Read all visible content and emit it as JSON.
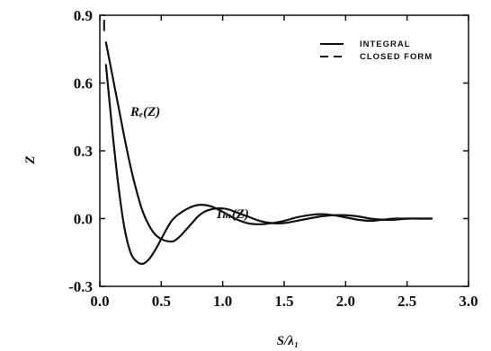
{
  "chart_data": {
    "type": "line",
    "title": "",
    "xlabel": "S/λ₁",
    "ylabel": "Z",
    "xlim": [
      0.0,
      3.0
    ],
    "ylim": [
      -0.3,
      0.9
    ],
    "xticks": [
      0.0,
      0.5,
      1.0,
      1.5,
      2.0,
      2.5,
      3.0
    ],
    "xtick_labels": [
      "0.0",
      "0.5",
      "1.0",
      "1.5",
      "2.0",
      "2.5",
      "3.0"
    ],
    "yticks": [
      -0.3,
      0.0,
      0.3,
      0.6,
      0.9
    ],
    "ytick_labels": [
      "-0.3",
      "0.0",
      "0.3",
      "0.6",
      "0.9"
    ],
    "grid": false,
    "legend_position": "top-right",
    "legend": [
      {
        "label": "INTEGRAL",
        "style": "solid"
      },
      {
        "label": "CLOSED FORM",
        "style": "dashed"
      }
    ],
    "annotations": [
      {
        "text": "Rₑ(Z)",
        "series": "Re(Z)"
      },
      {
        "text": "Iₘ(Z)",
        "series": "Im(Z)"
      }
    ],
    "series": [
      {
        "name": "Rₑ(Z)",
        "x": [
          0.05,
          0.1,
          0.15,
          0.2,
          0.25,
          0.3,
          0.35,
          0.4,
          0.45,
          0.5,
          0.55,
          0.6,
          0.65,
          0.7,
          0.75,
          0.8,
          0.85,
          0.9,
          0.95,
          1.0,
          1.05,
          1.1,
          1.15,
          1.2,
          1.3,
          1.4,
          1.5,
          1.6,
          1.7,
          1.8,
          1.9,
          2.0,
          2.1,
          2.2,
          2.3,
          2.4,
          2.5,
          2.6,
          2.7
        ],
        "values": [
          0.78,
          0.64,
          0.5,
          0.36,
          0.23,
          0.12,
          0.03,
          -0.03,
          -0.07,
          -0.09,
          -0.1,
          -0.1,
          -0.08,
          -0.05,
          -0.02,
          0.01,
          0.03,
          0.04,
          0.045,
          0.045,
          0.04,
          0.03,
          0.02,
          0.01,
          -0.01,
          -0.02,
          -0.02,
          -0.01,
          0.0,
          0.01,
          0.015,
          0.015,
          0.01,
          0.0,
          -0.005,
          -0.005,
          0.0,
          0.0,
          0.0
        ]
      },
      {
        "name": "Iₘ(Z)",
        "x": [
          0.05,
          0.1,
          0.15,
          0.2,
          0.25,
          0.3,
          0.35,
          0.4,
          0.45,
          0.5,
          0.55,
          0.6,
          0.7,
          0.8,
          0.9,
          1.0,
          1.1,
          1.2,
          1.3,
          1.4,
          1.5,
          1.6,
          1.7,
          1.8,
          1.9,
          2.0,
          2.1,
          2.2,
          2.3,
          2.4,
          2.5,
          2.6,
          2.7
        ],
        "values": [
          0.68,
          0.4,
          0.15,
          -0.04,
          -0.15,
          -0.19,
          -0.2,
          -0.18,
          -0.14,
          -0.09,
          -0.04,
          0.0,
          0.04,
          0.06,
          0.055,
          0.03,
          0.0,
          -0.02,
          -0.025,
          -0.02,
          -0.01,
          0.005,
          0.015,
          0.02,
          0.015,
          0.005,
          -0.005,
          -0.01,
          -0.005,
          0.0,
          0.0,
          0.0,
          0.0
        ]
      }
    ]
  }
}
